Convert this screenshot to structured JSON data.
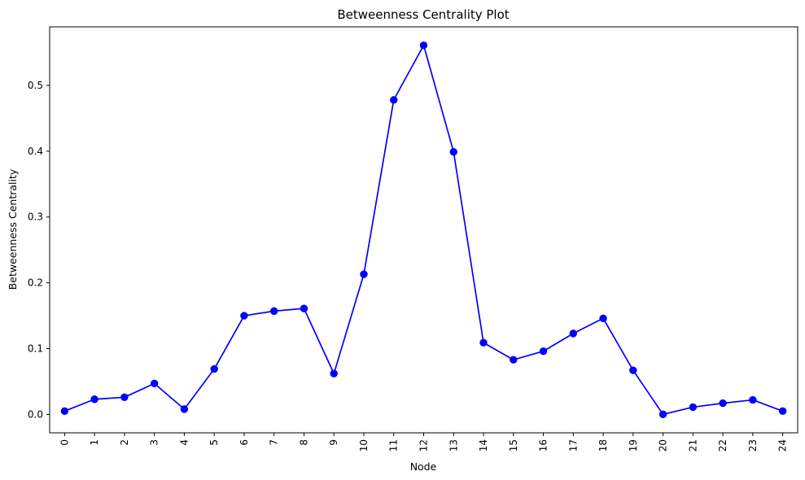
{
  "chart_data": {
    "type": "line",
    "title": "Betweenness Centrality Plot",
    "xlabel": "Node",
    "ylabel": "Betweenness Centrality",
    "x": [
      0,
      1,
      2,
      3,
      4,
      5,
      6,
      7,
      8,
      9,
      10,
      11,
      12,
      13,
      14,
      15,
      16,
      17,
      18,
      19,
      20,
      21,
      22,
      23,
      24
    ],
    "y": [
      0.005,
      0.023,
      0.026,
      0.047,
      0.008,
      0.069,
      0.15,
      0.157,
      0.161,
      0.062,
      0.213,
      0.478,
      0.561,
      0.399,
      0.109,
      0.083,
      0.096,
      0.123,
      0.146,
      0.067,
      0.0,
      0.011,
      0.017,
      0.022,
      0.005
    ],
    "xticks": [
      "0",
      "1",
      "2",
      "3",
      "4",
      "5",
      "6",
      "7",
      "8",
      "9",
      "10",
      "11",
      "12",
      "13",
      "14",
      "15",
      "16",
      "17",
      "18",
      "19",
      "20",
      "21",
      "22",
      "23",
      "24"
    ],
    "yticks": [
      "0.0",
      "0.1",
      "0.2",
      "0.3",
      "0.4",
      "0.5"
    ],
    "ylim": [
      -0.028,
      0.589
    ],
    "xlim": [
      -0.5,
      24.5
    ],
    "grid": false,
    "marker": "circle",
    "line_color": "#0000ff",
    "marker_color": "#0000ff",
    "xtick_rotation": 90
  }
}
